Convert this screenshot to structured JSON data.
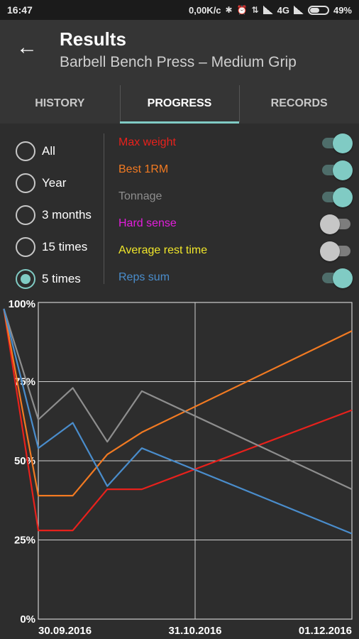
{
  "status_bar": {
    "time": "16:47",
    "speed": "0,00K/c",
    "network": "4G",
    "battery": "49%",
    "battery_level": 0.49
  },
  "header": {
    "title": "Results",
    "subtitle": "Barbell Bench Press – Medium Grip"
  },
  "tabs": [
    {
      "label": "HISTORY",
      "active": false
    },
    {
      "label": "PROGRESS",
      "active": true
    },
    {
      "label": "RECORDS",
      "active": false
    }
  ],
  "range_options": [
    {
      "label": "All",
      "selected": false
    },
    {
      "label": "Year",
      "selected": false
    },
    {
      "label": "3 months",
      "selected": false
    },
    {
      "label": "15 times",
      "selected": false
    },
    {
      "label": "5 times",
      "selected": true
    }
  ],
  "metrics": [
    {
      "label": "Max weight",
      "color": "#e8211c",
      "enabled": true
    },
    {
      "label": "Best 1RM",
      "color": "#f27a22",
      "enabled": true
    },
    {
      "label": "Tonnage",
      "color": "#8e8e8e",
      "enabled": true
    },
    {
      "label": "Hard sense",
      "color": "#e31ddc",
      "enabled": false
    },
    {
      "label": "Average rest time",
      "color": "#f0e62a",
      "enabled": false
    },
    {
      "label": "Reps sum",
      "color": "#4a8dcc",
      "enabled": true
    }
  ],
  "chart_data": {
    "type": "line",
    "y_ticks": [
      "100%",
      "75%",
      "50%",
      "25%",
      "0%"
    ],
    "x_ticks": [
      "30.09.2016",
      "31.10.2016",
      "01.12.2016"
    ],
    "ylim": [
      0,
      100
    ],
    "xlim": [
      0,
      100
    ],
    "grid": true,
    "series": [
      {
        "name": "Max weight",
        "color": "#e8211c",
        "points": [
          [
            -11,
            98
          ],
          [
            0,
            28
          ],
          [
            11,
            28
          ],
          [
            22,
            41
          ],
          [
            33,
            41
          ],
          [
            100,
            66
          ]
        ]
      },
      {
        "name": "Best 1RM",
        "color": "#f27a22",
        "points": [
          [
            -11,
            98
          ],
          [
            0,
            39
          ],
          [
            11,
            39
          ],
          [
            22,
            52
          ],
          [
            33,
            59
          ],
          [
            100,
            91
          ]
        ]
      },
      {
        "name": "Tonnage",
        "color": "#8e8e8e",
        "points": [
          [
            -11,
            98
          ],
          [
            0,
            63
          ],
          [
            11,
            73
          ],
          [
            22,
            56
          ],
          [
            33,
            72
          ],
          [
            100,
            41
          ]
        ]
      },
      {
        "name": "Reps sum",
        "color": "#4a8dcc",
        "points": [
          [
            -11,
            98
          ],
          [
            0,
            54
          ],
          [
            11,
            62
          ],
          [
            22,
            42
          ],
          [
            33,
            54
          ],
          [
            100,
            27
          ]
        ]
      }
    ]
  }
}
